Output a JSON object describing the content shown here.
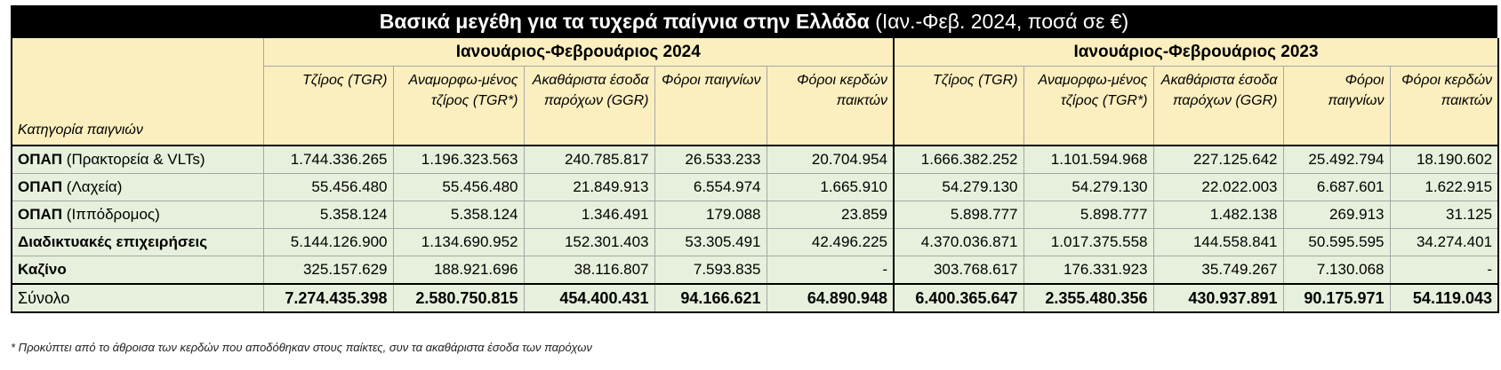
{
  "title": {
    "bold": "Βασικά μεγέθη για τα τυχερά παίγνια στην Ελλάδα",
    "normal": " (Ιαν.-Φεβ. 2024, ποσά σε €)"
  },
  "periods": [
    "Ιανουάριος-Φεβρουάριος 2024",
    "Ιανουάριος-Φεβρουάριος 2023"
  ],
  "category_header": "Κατηγορία παιγνιών",
  "columns": [
    "Τζίρος (TGR)",
    "Αναμορφω-μένος τζίρος (TGR*)",
    "Ακαθάριστα έσοδα παρόχων (GGR)",
    "Φόροι παιγνίων",
    "Φόροι κερδών παικτών",
    "Τζίρος (TGR)",
    "Αναμορφω-μένος τζίρος (TGR*)",
    "Ακαθάριστα έσοδα παρόχων (GGR)",
    "Φόροι παιγνίων",
    "Φόροι κερδών παικτών"
  ],
  "rows": [
    {
      "name_bold": "ΟΠΑΠ",
      "name_rest": " (Πρακτορεία & VLTs)",
      "values": [
        "1.744.336.265",
        "1.196.323.563",
        "240.785.817",
        "26.533.233",
        "20.704.954",
        "1.666.382.252",
        "1.101.594.968",
        "227.125.642",
        "25.492.794",
        "18.190.602"
      ]
    },
    {
      "name_bold": "ΟΠΑΠ",
      "name_rest": " (Λαχεία)",
      "values": [
        "55.456.480",
        "55.456.480",
        "21.849.913",
        "6.554.974",
        "1.665.910",
        "54.279.130",
        "54.279.130",
        "22.022.003",
        "6.687.601",
        "1.622.915"
      ]
    },
    {
      "name_bold": "ΟΠΑΠ",
      "name_rest": " (Ιππόδρομος)",
      "values": [
        "5.358.124",
        "5.358.124",
        "1.346.491",
        "179.088",
        "23.859",
        "5.898.777",
        "5.898.777",
        "1.482.138",
        "269.913",
        "31.125"
      ]
    },
    {
      "name_bold": "Διαδικτυακές επιχειρήσεις",
      "name_rest": "",
      "values": [
        "5.144.126.900",
        "1.134.690.952",
        "152.301.403",
        "53.305.491",
        "42.496.225",
        "4.370.036.871",
        "1.017.375.558",
        "144.558.841",
        "50.595.595",
        "34.274.401"
      ]
    },
    {
      "name_bold": "Καζίνο",
      "name_rest": "",
      "values": [
        "325.157.629",
        "188.921.696",
        "38.116.807",
        "7.593.835",
        "-",
        "303.768.617",
        "176.331.923",
        "35.749.267",
        "7.130.068",
        "-"
      ]
    }
  ],
  "total": {
    "label": "Σύνολο",
    "values": [
      "7.274.435.398",
      "2.580.750.815",
      "454.400.431",
      "94.166.621",
      "64.890.948",
      "6.400.365.647",
      "2.355.480.356",
      "430.937.891",
      "90.175.971",
      "54.119.043"
    ]
  },
  "footnote": "* Προκύπτει από το άθροισα των κερδών που αποδόθηκαν στους παίκτες, συν τα ακαθάριστα έσοδα των παρόχων"
}
